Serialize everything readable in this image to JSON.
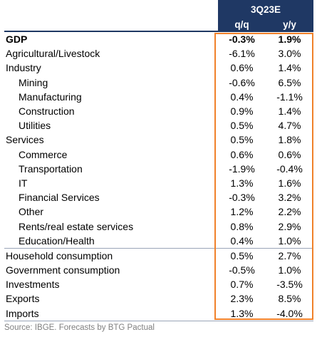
{
  "header": {
    "period": "3Q23E",
    "col_qq": "q/q",
    "col_yy": "y/y"
  },
  "rows": [
    {
      "label": "GDP",
      "qq": "-0.3%",
      "yy": "1.9%"
    },
    {
      "label": "Agricultural/Livestock",
      "qq": "-6.1%",
      "yy": "3.0%"
    },
    {
      "label": "Industry",
      "qq": "0.6%",
      "yy": "1.4%"
    },
    {
      "label": "Mining",
      "qq": "-0.6%",
      "yy": "6.5%"
    },
    {
      "label": "Manufacturing",
      "qq": "0.4%",
      "yy": "-1.1%"
    },
    {
      "label": "Construction",
      "qq": "0.9%",
      "yy": "1.4%"
    },
    {
      "label": "Utilities",
      "qq": "0.5%",
      "yy": "4.7%"
    },
    {
      "label": "Services",
      "qq": "0.5%",
      "yy": "1.8%"
    },
    {
      "label": "Commerce",
      "qq": "0.6%",
      "yy": "0.6%"
    },
    {
      "label": "Transportation",
      "qq": "-1.9%",
      "yy": "-0.4%"
    },
    {
      "label": "IT",
      "qq": "1.3%",
      "yy": "1.6%"
    },
    {
      "label": "Financial Services",
      "qq": "-0.3%",
      "yy": "3.2%"
    },
    {
      "label": "Other",
      "qq": "1.2%",
      "yy": "2.2%"
    },
    {
      "label": "Rents/real estate services",
      "qq": "0.8%",
      "yy": "2.9%"
    },
    {
      "label": "Education/Health",
      "qq": "0.4%",
      "yy": "1.0%"
    },
    {
      "label": "Household consumption",
      "qq": "0.5%",
      "yy": "2.7%"
    },
    {
      "label": "Government consumption",
      "qq": "-0.5%",
      "yy": "1.0%"
    },
    {
      "label": "Investments",
      "qq": "0.7%",
      "yy": "-3.5%"
    },
    {
      "label": "Exports",
      "qq": "2.3%",
      "yy": "8.5%"
    },
    {
      "label": "Imports",
      "qq": "1.3%",
      "yy": "-4.0%"
    }
  ],
  "source": "Source: IBGE. Forecasts by BTG Pactual",
  "colors": {
    "header_bg": "#1f3864",
    "highlight_border": "#f0812a",
    "source_text": "#7f7f7f"
  }
}
